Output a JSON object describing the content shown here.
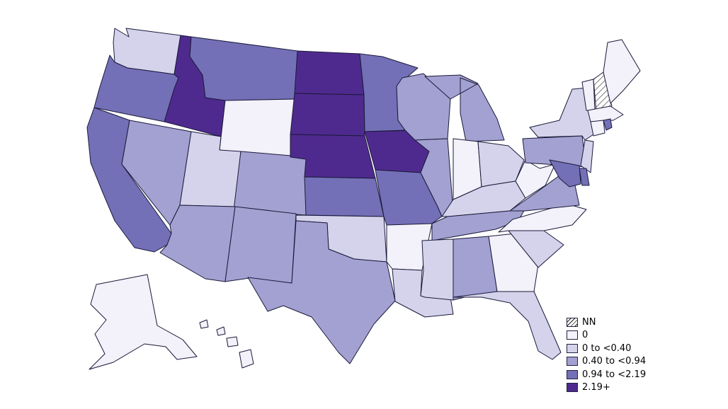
{
  "map": {
    "colors": {
      "NN": "#ffffff",
      "zero": "#f3f1f9",
      "c1": "#d5d3eb",
      "c2": "#a3a1d1",
      "c3": "#7370b7",
      "c4": "#4f2a8e"
    },
    "states": [
      {
        "name": "WA",
        "category": "c1"
      },
      {
        "name": "OR",
        "category": "c3"
      },
      {
        "name": "CA",
        "category": "c3"
      },
      {
        "name": "ID",
        "category": "c4"
      },
      {
        "name": "NV",
        "category": "c2"
      },
      {
        "name": "MT",
        "category": "c3"
      },
      {
        "name": "WY",
        "category": "zero"
      },
      {
        "name": "UT",
        "category": "c1"
      },
      {
        "name": "CO",
        "category": "c2"
      },
      {
        "name": "AZ",
        "category": "c2"
      },
      {
        "name": "NM",
        "category": "c2"
      },
      {
        "name": "ND",
        "category": "c4"
      },
      {
        "name": "SD",
        "category": "c4"
      },
      {
        "name": "NE",
        "category": "c4"
      },
      {
        "name": "KS",
        "category": "c3"
      },
      {
        "name": "OK",
        "category": "c1"
      },
      {
        "name": "TX",
        "category": "c2"
      },
      {
        "name": "MN",
        "category": "c3"
      },
      {
        "name": "IA",
        "category": "c4"
      },
      {
        "name": "MO",
        "category": "c3"
      },
      {
        "name": "AR",
        "category": "zero"
      },
      {
        "name": "LA",
        "category": "c1"
      },
      {
        "name": "WI",
        "category": "c2"
      },
      {
        "name": "IL",
        "category": "c2"
      },
      {
        "name": "MI",
        "category": "c2"
      },
      {
        "name": "IN",
        "category": "zero"
      },
      {
        "name": "OH",
        "category": "c1"
      },
      {
        "name": "KY",
        "category": "c1"
      },
      {
        "name": "TN",
        "category": "c2"
      },
      {
        "name": "MS",
        "category": "c1"
      },
      {
        "name": "AL",
        "category": "c2"
      },
      {
        "name": "GA",
        "category": "zero"
      },
      {
        "name": "FL",
        "category": "c1"
      },
      {
        "name": "SC",
        "category": "c1"
      },
      {
        "name": "NC",
        "category": "zero"
      },
      {
        "name": "VA",
        "category": "c2"
      },
      {
        "name": "WV",
        "category": "zero"
      },
      {
        "name": "PA",
        "category": "c2"
      },
      {
        "name": "NY",
        "category": "c1"
      },
      {
        "name": "VT",
        "category": "zero"
      },
      {
        "name": "NH",
        "category": "NN"
      },
      {
        "name": "ME",
        "category": "zero"
      },
      {
        "name": "MA",
        "category": "zero"
      },
      {
        "name": "CT",
        "category": "zero"
      },
      {
        "name": "RI",
        "category": "c3"
      },
      {
        "name": "NJ",
        "category": "c1"
      },
      {
        "name": "DE",
        "category": "c3"
      },
      {
        "name": "MD",
        "category": "c3"
      },
      {
        "name": "AK",
        "category": "zero"
      },
      {
        "name": "HI",
        "category": "zero"
      }
    ]
  },
  "legend": {
    "items": [
      {
        "label": "NN",
        "category": "NN",
        "hatched": true
      },
      {
        "label": "0",
        "category": "zero",
        "hatched": false
      },
      {
        "label": "0 to <0.40",
        "category": "c1",
        "hatched": false
      },
      {
        "label": "0.40 to <0.94",
        "category": "c2",
        "hatched": false
      },
      {
        "label": "0.94 to <2.19",
        "category": "c3",
        "hatched": false
      },
      {
        "label": "2.19+",
        "category": "c4",
        "hatched": false
      }
    ]
  }
}
